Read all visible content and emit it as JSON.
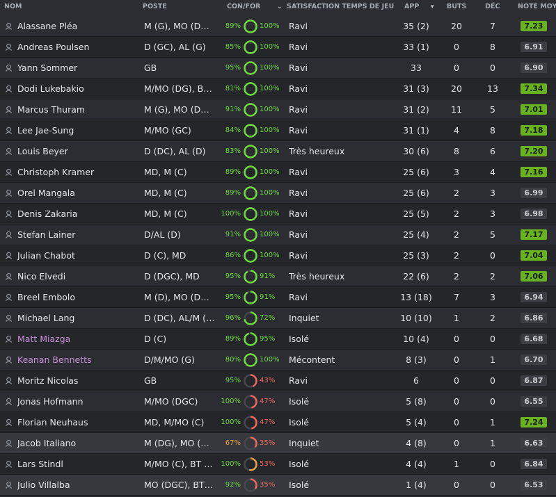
{
  "headers": {
    "nom": "NOM",
    "poste": "POSTE",
    "conf": "CON/FOR",
    "sat_arrow": "⌄",
    "sat": "SATISFACTION TEMPS DE JEU",
    "app": "APP",
    "app_arrow": "▾",
    "buts": "BUTS",
    "dec": "DÉC",
    "note": "NOTE MOY"
  },
  "players": [
    {
      "name": "Alassane Pléa",
      "position": "M (G), MO (DG),...",
      "condition": "89%",
      "form": "100%",
      "satisfaction": "Ravi",
      "app": "35 (2)",
      "goals": "20",
      "assists": "7",
      "rating": "7.23",
      "rating_good": true,
      "highlight": false,
      "color": "normal"
    },
    {
      "name": "Andreas Poulsen",
      "position": "D (GC), AL (G)",
      "condition": "85%",
      "form": "100%",
      "satisfaction": "Ravi",
      "app": "33 (1)",
      "goals": "0",
      "assists": "8",
      "rating": "6.91",
      "rating_good": false,
      "highlight": false,
      "color": "normal"
    },
    {
      "name": "Yann Sommer",
      "position": "GB",
      "condition": "95%",
      "form": "100%",
      "satisfaction": "Ravi",
      "app": "33",
      "goals": "0",
      "assists": "0",
      "rating": "6.90",
      "rating_good": false,
      "highlight": false,
      "color": "normal"
    },
    {
      "name": "Dodi Lukebakio",
      "position": "M/MO (DG), BT...",
      "condition": "81%",
      "form": "100%",
      "satisfaction": "Ravi",
      "app": "31 (3)",
      "goals": "20",
      "assists": "13",
      "rating": "7.34",
      "rating_good": true,
      "highlight": false,
      "color": "normal"
    },
    {
      "name": "Marcus Thuram",
      "position": "M (G), MO (DG),...",
      "condition": "91%",
      "form": "100%",
      "satisfaction": "Ravi",
      "app": "31 (2)",
      "goals": "11",
      "assists": "5",
      "rating": "7.01",
      "rating_good": true,
      "highlight": false,
      "color": "normal"
    },
    {
      "name": "Lee Jae-Sung",
      "position": "M/MO (GC)",
      "condition": "84%",
      "form": "100%",
      "satisfaction": "Ravi",
      "app": "31 (1)",
      "goals": "4",
      "assists": "8",
      "rating": "7.18",
      "rating_good": true,
      "highlight": false,
      "color": "normal"
    },
    {
      "name": "Louis Beyer",
      "position": "D (DC), AL (D)",
      "condition": "83%",
      "form": "100%",
      "satisfaction": "Très heureux",
      "app": "30 (6)",
      "goals": "8",
      "assists": "6",
      "rating": "7.20",
      "rating_good": true,
      "highlight": false,
      "color": "normal"
    },
    {
      "name": "Christoph Kramer",
      "position": "MD, M (C)",
      "condition": "89%",
      "form": "100%",
      "satisfaction": "Ravi",
      "app": "25 (6)",
      "goals": "3",
      "assists": "4",
      "rating": "7.16",
      "rating_good": true,
      "highlight": false,
      "color": "normal"
    },
    {
      "name": "Orel Mangala",
      "position": "MD, M (C)",
      "condition": "89%",
      "form": "100%",
      "satisfaction": "Ravi",
      "app": "25 (6)",
      "goals": "2",
      "assists": "3",
      "rating": "6.99",
      "rating_good": false,
      "highlight": false,
      "color": "normal"
    },
    {
      "name": "Denis Zakaria",
      "position": "MD, M (C)",
      "condition": "100%",
      "form": "100%",
      "satisfaction": "Ravi",
      "app": "25 (5)",
      "goals": "2",
      "assists": "3",
      "rating": "6.98",
      "rating_good": false,
      "highlight": false,
      "color": "normal"
    },
    {
      "name": "Stefan Lainer",
      "position": "D/AL (D)",
      "condition": "91%",
      "form": "100%",
      "satisfaction": "Ravi",
      "app": "25 (4)",
      "goals": "2",
      "assists": "5",
      "rating": "7.17",
      "rating_good": true,
      "highlight": false,
      "color": "normal"
    },
    {
      "name": "Julian Chabot",
      "position": "D (C), MD",
      "condition": "86%",
      "form": "100%",
      "satisfaction": "Ravi",
      "app": "25 (3)",
      "goals": "2",
      "assists": "0",
      "rating": "7.04",
      "rating_good": true,
      "highlight": false,
      "color": "normal"
    },
    {
      "name": "Nico Elvedi",
      "position": "D (DGC), MD",
      "condition": "95%",
      "form": "91%",
      "satisfaction": "Très heureux",
      "app": "22 (6)",
      "goals": "2",
      "assists": "2",
      "rating": "7.06",
      "rating_good": true,
      "highlight": false,
      "color": "normal"
    },
    {
      "name": "Breel Embolo",
      "position": "M (D), MO (DG...",
      "condition": "95%",
      "form": "91%",
      "satisfaction": "Ravi",
      "app": "13 (18)",
      "goals": "7",
      "assists": "3",
      "rating": "6.94",
      "rating_good": false,
      "highlight": false,
      "color": "normal"
    },
    {
      "name": "Michael Lang",
      "position": "D (DC), AL/M (D)",
      "condition": "96%",
      "form": "72%",
      "satisfaction": "Inquiet",
      "app": "10 (10)",
      "goals": "1",
      "assists": "2",
      "rating": "6.86",
      "rating_good": false,
      "highlight": false,
      "color": "normal"
    },
    {
      "name": "Matt Miazga",
      "position": "D (C)",
      "condition": "89%",
      "form": "95%",
      "satisfaction": "Isolé",
      "app": "10 (4)",
      "goals": "0",
      "assists": "0",
      "rating": "6.68",
      "rating_good": false,
      "highlight": false,
      "color": "pink"
    },
    {
      "name": "Keanan Bennetts",
      "position": "D/M/MO (G)",
      "condition": "80%",
      "form": "100%",
      "satisfaction": "Mécontent",
      "app": "8 (3)",
      "goals": "0",
      "assists": "1",
      "rating": "6.70",
      "rating_good": false,
      "highlight": false,
      "color": "pink"
    },
    {
      "name": "Moritz Nicolas",
      "position": "GB",
      "condition": "95%",
      "form": "43%",
      "satisfaction": "Ravi",
      "app": "6",
      "goals": "0",
      "assists": "0",
      "rating": "6.87",
      "rating_good": false,
      "highlight": false,
      "color": "normal"
    },
    {
      "name": "Jonas Hofmann",
      "position": "M/MO (DGC)",
      "condition": "100%",
      "form": "47%",
      "satisfaction": "Isolé",
      "app": "5 (8)",
      "goals": "0",
      "assists": "0",
      "rating": "6.55",
      "rating_good": false,
      "highlight": false,
      "color": "normal"
    },
    {
      "name": "Florian Neuhaus",
      "position": "MD, M/MO (C)",
      "condition": "100%",
      "form": "47%",
      "satisfaction": "Isolé",
      "app": "5 (4)",
      "goals": "0",
      "assists": "1",
      "rating": "7.24",
      "rating_good": true,
      "highlight": false,
      "color": "normal"
    },
    {
      "name": "Jacob Italiano",
      "position": "M (DG), MO (D...",
      "condition": "67%",
      "form": "35%",
      "satisfaction": "Inquiet",
      "app": "4 (8)",
      "goals": "0",
      "assists": "1",
      "rating": "6.63",
      "rating_good": false,
      "highlight": true,
      "color": "normal"
    },
    {
      "name": "Lars Stindl",
      "position": "M/MO (C), BT (...",
      "condition": "100%",
      "form": "53%",
      "satisfaction": "Isolé",
      "app": "4 (4)",
      "goals": "1",
      "assists": "0",
      "rating": "6.84",
      "rating_good": false,
      "highlight": false,
      "color": "normal"
    },
    {
      "name": "Julio Villalba",
      "position": "MO (DGC), BT (...",
      "condition": "92%",
      "form": "35%",
      "satisfaction": "Isolé",
      "app": "1 (4)",
      "goals": "0",
      "assists": "0",
      "rating": "6.53",
      "rating_good": false,
      "highlight": true,
      "color": "normal"
    }
  ]
}
